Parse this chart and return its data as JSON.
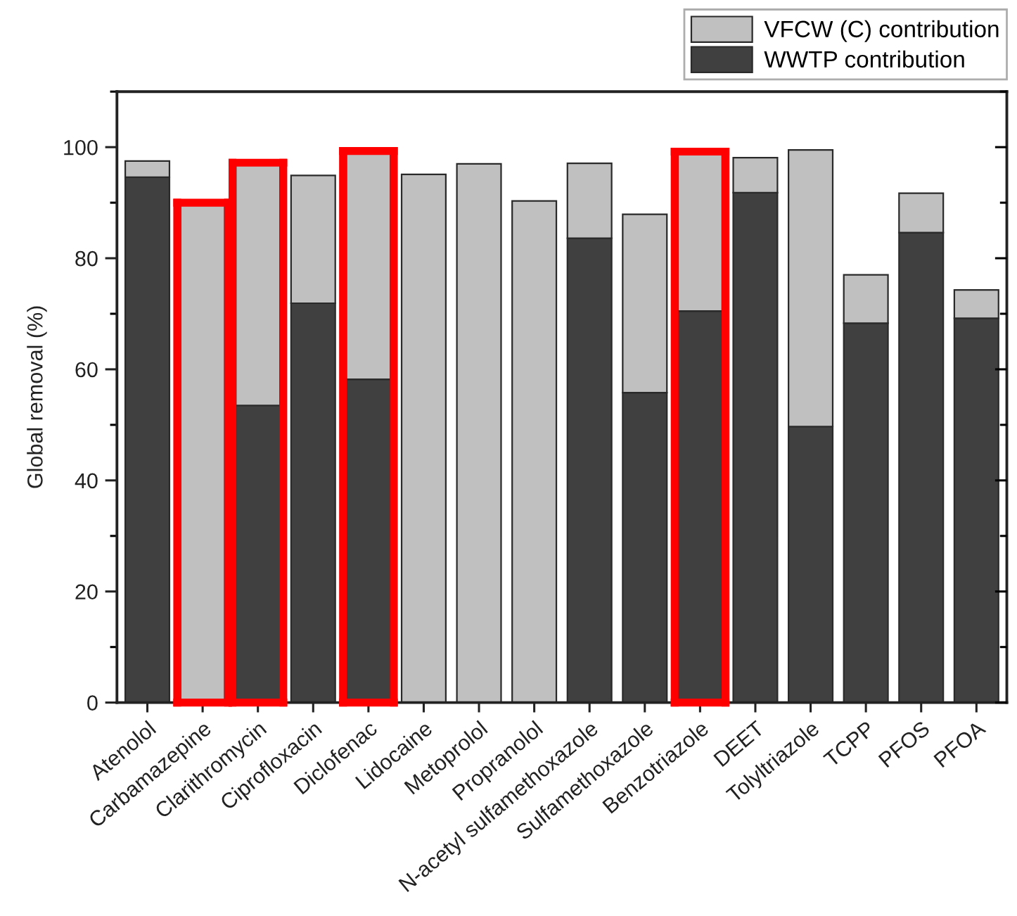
{
  "chart_data": {
    "type": "bar",
    "stacked": true,
    "ylabel": "Global removal (%)",
    "categories": [
      "Atenolol",
      "Carbamazepine",
      "Clarithromycin",
      "Ciprofloxacin",
      "Diclofenac",
      "Lidocaine",
      "Metoprolol",
      "Propranolol",
      "N-acetyl sulfamethoxazole",
      "Sulfamethoxazole",
      "Benzotriazole",
      "DEET",
      "Tolyltriazole",
      "TCPP",
      "PFOS",
      "PFOA"
    ],
    "series": [
      {
        "name": "WWTP contribution",
        "color": "#404040",
        "values": [
          94.6,
          0,
          53.5,
          71.9,
          58.2,
          0,
          0,
          0,
          83.6,
          55.8,
          70.5,
          91.8,
          49.7,
          68.3,
          84.6,
          69.2
        ]
      },
      {
        "name": "VFCW (C) contribution",
        "color": "#c0c0c0",
        "values": [
          2.9,
          90.0,
          43.7,
          23.0,
          41.1,
          95.1,
          97.0,
          90.3,
          13.5,
          32.1,
          28.7,
          6.3,
          49.8,
          8.7,
          7.1,
          5.1
        ]
      }
    ],
    "ylim": [
      0,
      110
    ],
    "yticks": [
      0,
      20,
      40,
      60,
      80,
      100
    ],
    "legend": "top right"
  }
}
